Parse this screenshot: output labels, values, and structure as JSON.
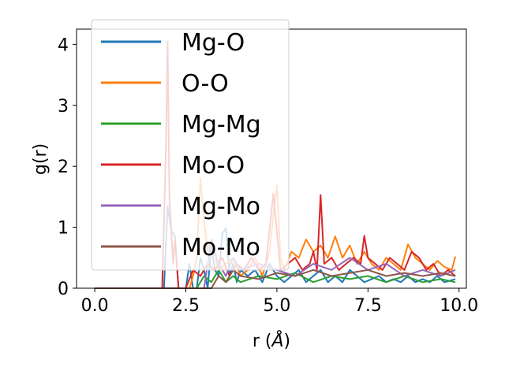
{
  "chart_data": {
    "type": "line",
    "title": "",
    "xlabel": "r (",
    "xlabel_unit": "Å",
    "xlabel_close": ")",
    "ylabel": "g(r)",
    "xlim": [
      -0.5,
      10.2
    ],
    "ylim": [
      0,
      4.25
    ],
    "xticks": [
      0.0,
      2.5,
      5.0,
      7.5,
      10.0
    ],
    "xtick_labels": [
      "0.0",
      "2.5",
      "5.0",
      "7.5",
      "10.0"
    ],
    "yticks": [
      0,
      1,
      2,
      3,
      4
    ],
    "ytick_labels": [
      "0",
      "1",
      "2",
      "3",
      "4"
    ],
    "grid": false,
    "legend_position": "top-left",
    "series": [
      {
        "name": "Mg-O",
        "color": "#1f77b4",
        "x": [
          0,
          1.8,
          1.9,
          2.0,
          2.1,
          2.2,
          2.3,
          2.4,
          2.5,
          2.6,
          2.7,
          2.8,
          2.9,
          3.0,
          3.1,
          3.2,
          3.3,
          3.4,
          3.5,
          3.6,
          3.7,
          3.8,
          3.9,
          4.0,
          4.2,
          4.4,
          4.6,
          4.8,
          5.0,
          5.2,
          5.4,
          5.6,
          5.8,
          6.0,
          6.2,
          6.4,
          6.6,
          6.8,
          7.0,
          7.2,
          7.4,
          7.6,
          7.8,
          8.0,
          8.2,
          8.4,
          8.6,
          8.8,
          9.0,
          9.2,
          9.4,
          9.6,
          9.9
        ],
        "y": [
          0,
          0,
          0,
          1.35,
          0.95,
          0.85,
          0,
          0,
          0,
          0.4,
          0,
          0,
          0.5,
          0.3,
          0,
          0.7,
          0.3,
          0.2,
          0.9,
          0.98,
          0.2,
          0.4,
          0.1,
          0.3,
          0.2,
          0.3,
          0.1,
          0.4,
          0.2,
          0.1,
          0.2,
          0.3,
          0.1,
          0.2,
          0.3,
          0.1,
          0.2,
          0.1,
          0.3,
          0.2,
          0.1,
          0.15,
          0.2,
          0.1,
          0.15,
          0.1,
          0.2,
          0.1,
          0.15,
          0.1,
          0.2,
          0.1,
          0.15
        ]
      },
      {
        "name": "O-O",
        "color": "#ff7f0e",
        "x": [
          0,
          2.6,
          2.7,
          2.8,
          2.9,
          3.0,
          3.1,
          3.2,
          3.4,
          3.6,
          3.8,
          4.0,
          4.2,
          4.4,
          4.6,
          4.8,
          4.9,
          5.0,
          5.1,
          5.2,
          5.4,
          5.6,
          5.8,
          6.0,
          6.2,
          6.4,
          6.6,
          6.8,
          7.0,
          7.2,
          7.4,
          7.6,
          7.8,
          8.0,
          8.2,
          8.4,
          8.6,
          8.8,
          9.0,
          9.2,
          9.4,
          9.6,
          9.8,
          9.9
        ],
        "y": [
          0,
          0,
          0.2,
          0.5,
          1.8,
          1.1,
          0.6,
          0.8,
          0.3,
          0.4,
          0.5,
          0.2,
          0.3,
          0.5,
          0.2,
          0.6,
          1.2,
          1.68,
          0.5,
          0.3,
          0.6,
          0.5,
          0.8,
          0.6,
          0.7,
          0.5,
          0.85,
          0.5,
          0.7,
          0.4,
          0.6,
          0.4,
          0.3,
          0.5,
          0.4,
          0.3,
          0.72,
          0.5,
          0.4,
          0.3,
          0.45,
          0.35,
          0.3,
          0.52
        ]
      },
      {
        "name": "Mg-Mg",
        "color": "#2ca02c",
        "x": [
          0,
          2.8,
          3.0,
          3.2,
          3.4,
          3.6,
          3.8,
          4.0,
          4.5,
          5.0,
          5.5,
          6.0,
          6.5,
          7.0,
          7.5,
          8.0,
          8.5,
          9.0,
          9.5,
          9.9
        ],
        "y": [
          0,
          0,
          0.2,
          0.1,
          0.3,
          0.1,
          0.2,
          0.1,
          0.2,
          0.15,
          0.25,
          0.1,
          0.2,
          0.15,
          0.2,
          0.1,
          0.2,
          0.1,
          0.15,
          0.1
        ]
      },
      {
        "name": "Mo-O",
        "color": "#d62728",
        "x": [
          0,
          1.85,
          1.95,
          2.0,
          2.05,
          2.15,
          2.2,
          2.3,
          2.5,
          2.7,
          2.9,
          3.1,
          3.3,
          3.5,
          3.7,
          3.9,
          4.1,
          4.3,
          4.5,
          4.7,
          4.9,
          5.1,
          5.3,
          5.5,
          5.7,
          5.9,
          6.0,
          6.1,
          6.2,
          6.3,
          6.5,
          6.7,
          6.9,
          7.1,
          7.3,
          7.4,
          7.5,
          7.7,
          7.9,
          8.1,
          8.3,
          8.5,
          8.7,
          8.9,
          9.1,
          9.3,
          9.5,
          9.7,
          9.9
        ],
        "y": [
          0,
          0,
          2.2,
          4.05,
          1.5,
          0.4,
          0.8,
          0,
          0,
          0.3,
          0.2,
          0.4,
          0.3,
          0.5,
          0.2,
          0.4,
          0.3,
          0.5,
          0.3,
          0.4,
          1.55,
          0.3,
          0.4,
          0.5,
          0.3,
          0.4,
          0.6,
          0.3,
          1.53,
          0.4,
          0.5,
          0.3,
          0.4,
          0.5,
          0.4,
          0.86,
          0.5,
          0.4,
          0.3,
          0.5,
          0.4,
          0.3,
          0.6,
          0.5,
          0.3,
          0.4,
          0.2,
          0.3,
          0.2
        ]
      },
      {
        "name": "Mg-Mo",
        "color": "#9467bd",
        "x": [
          0,
          3.0,
          3.2,
          3.4,
          3.6,
          3.8,
          4.0,
          4.5,
          5.0,
          5.5,
          6.0,
          6.5,
          7.0,
          7.5,
          8.0,
          8.5,
          9.0,
          9.5,
          9.9
        ],
        "y": [
          0,
          0,
          0.8,
          0.4,
          0.2,
          0.5,
          0.3,
          0.4,
          0.3,
          0.2,
          0.4,
          0.3,
          0.5,
          0.3,
          0.4,
          0.2,
          0.3,
          0.2,
          0.3
        ]
      },
      {
        "name": "Mo-Mo",
        "color": "#8c564b",
        "x": [
          0,
          3.2,
          3.4,
          3.6,
          3.8,
          4.0,
          4.5,
          5.0,
          5.5,
          6.0,
          6.5,
          7.0,
          7.5,
          8.0,
          8.5,
          9.0,
          9.5,
          9.9
        ],
        "y": [
          0,
          0,
          0.2,
          0.1,
          0.3,
          0.2,
          0.15,
          0.25,
          0.2,
          0.3,
          0.2,
          0.25,
          0.3,
          0.2,
          0.25,
          0.2,
          0.25,
          0.2
        ]
      }
    ]
  }
}
